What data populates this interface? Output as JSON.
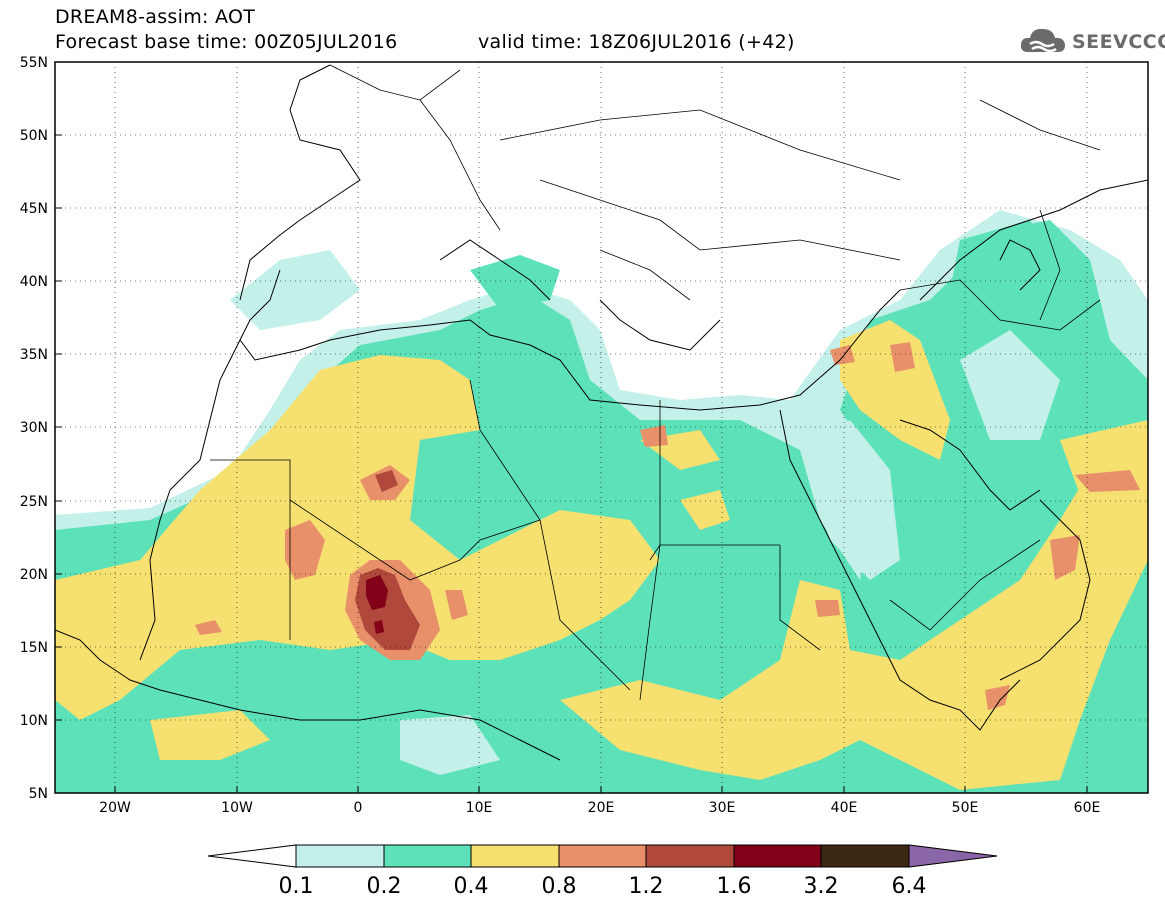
{
  "header": {
    "title": "DREAM8-assim: AOT",
    "base_time": "Forecast base time: 00Z05JUL2016",
    "valid_time": "valid time: 18Z06JUL2016 (+42)"
  },
  "logo": {
    "text": "SEEVCCC",
    "icon": "cloud-icon"
  },
  "map": {
    "lat_labels": [
      "55N",
      "50N",
      "45N",
      "40N",
      "35N",
      "30N",
      "25N",
      "20N",
      "15N",
      "10N",
      "5N"
    ],
    "lon_labels": [
      "20W",
      "10W",
      "0",
      "10E",
      "20E",
      "30E",
      "40E",
      "50E",
      "60E"
    ],
    "lon_range": [
      -25,
      65
    ],
    "lat_range": [
      5,
      55
    ],
    "grid": "dotted",
    "field": "AOT"
  },
  "colorbar": {
    "labels": [
      "0.1",
      "0.2",
      "0.4",
      "0.8",
      "1.2",
      "1.6",
      "3.2",
      "6.4"
    ],
    "colors": [
      "#ffffff",
      "#c4f0ea",
      "#5ce1b9",
      "#f5e070",
      "#e8906a",
      "#b0483b",
      "#820018",
      "#3d2814",
      "#8a66a8"
    ]
  }
}
